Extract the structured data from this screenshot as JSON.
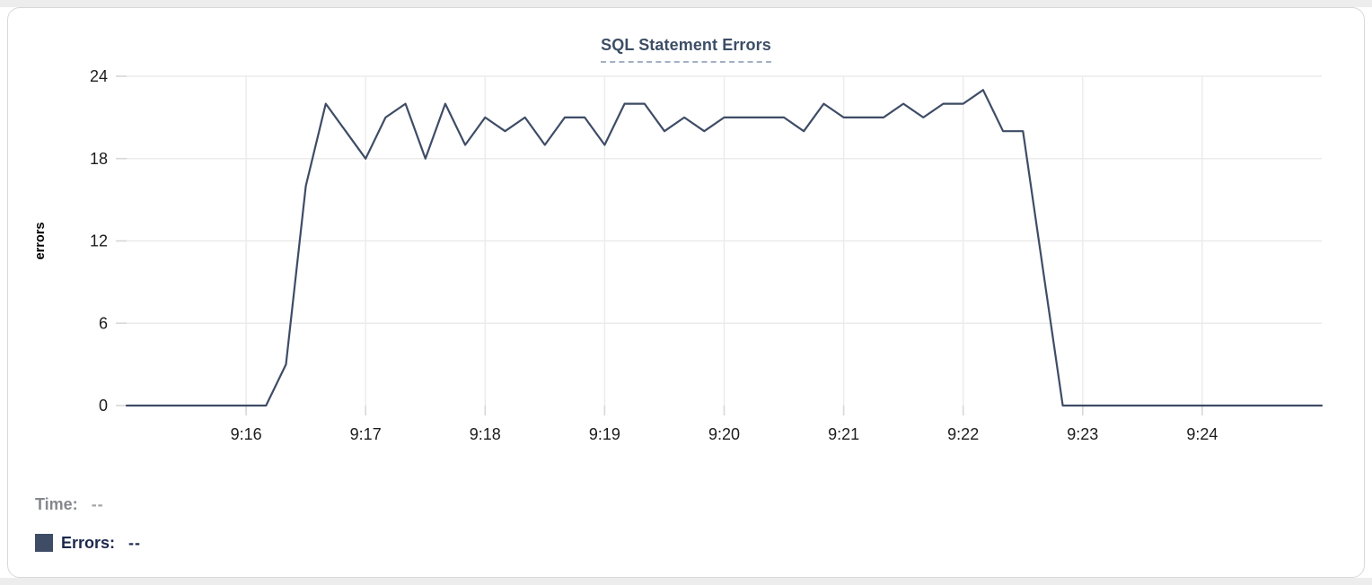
{
  "page": {
    "band_color": "#ededed",
    "card_border_color": "#d8d8d8",
    "card_background": "#ffffff"
  },
  "chart_data": {
    "type": "line",
    "title": "SQL Statement Errors",
    "title_color": "#3d4e66",
    "title_underline_color": "#a4b0c4",
    "xlabel": "",
    "ylabel": "errors",
    "ylim": [
      0,
      24
    ],
    "y_ticks": [
      0,
      6,
      12,
      18,
      24
    ],
    "x_range_seconds": [
      0,
      600
    ],
    "x_ticks": [
      {
        "sec": 60,
        "label": "9:16"
      },
      {
        "sec": 120,
        "label": "9:17"
      },
      {
        "sec": 180,
        "label": "9:18"
      },
      {
        "sec": 240,
        "label": "9:19"
      },
      {
        "sec": 300,
        "label": "9:20"
      },
      {
        "sec": 360,
        "label": "9:21"
      },
      {
        "sec": 420,
        "label": "9:22"
      },
      {
        "sec": 480,
        "label": "9:23"
      },
      {
        "sec": 540,
        "label": "9:24"
      }
    ],
    "grid": true,
    "grid_color": "#ebebeb",
    "tick_mark_color": "#d7d7d7",
    "axis_tick_label_color": "#1c1c1e",
    "legend_position": "none",
    "series": [
      {
        "name": "Errors",
        "color": "#3e4c66",
        "x_seconds": [
          0,
          10,
          20,
          30,
          40,
          50,
          60,
          70,
          80,
          90,
          100,
          110,
          120,
          130,
          140,
          150,
          160,
          170,
          180,
          190,
          200,
          210,
          220,
          230,
          240,
          250,
          260,
          270,
          280,
          290,
          300,
          310,
          320,
          330,
          340,
          350,
          360,
          370,
          380,
          390,
          400,
          410,
          420,
          430,
          440,
          450,
          460,
          470,
          480,
          490,
          500,
          510,
          520,
          530,
          540,
          550,
          560,
          570,
          580,
          590,
          600
        ],
        "values": [
          0,
          0,
          0,
          0,
          0,
          0,
          0,
          0,
          3,
          16,
          22,
          20,
          18,
          21,
          22,
          18,
          22,
          19,
          21,
          20,
          21,
          19,
          21,
          21,
          19,
          22,
          22,
          20,
          21,
          20,
          21,
          21,
          21,
          21,
          20,
          22,
          21,
          21,
          21,
          22,
          21,
          22,
          22,
          23,
          20,
          20,
          10,
          0,
          0,
          0,
          0,
          0,
          0,
          0,
          0,
          0,
          0,
          0,
          0,
          0,
          0
        ]
      }
    ]
  },
  "tooltip": {
    "time_label": "Time:",
    "time_value": "--",
    "errors_label": "Errors:",
    "errors_value": "--",
    "swatch_color": "#3e4c66"
  }
}
